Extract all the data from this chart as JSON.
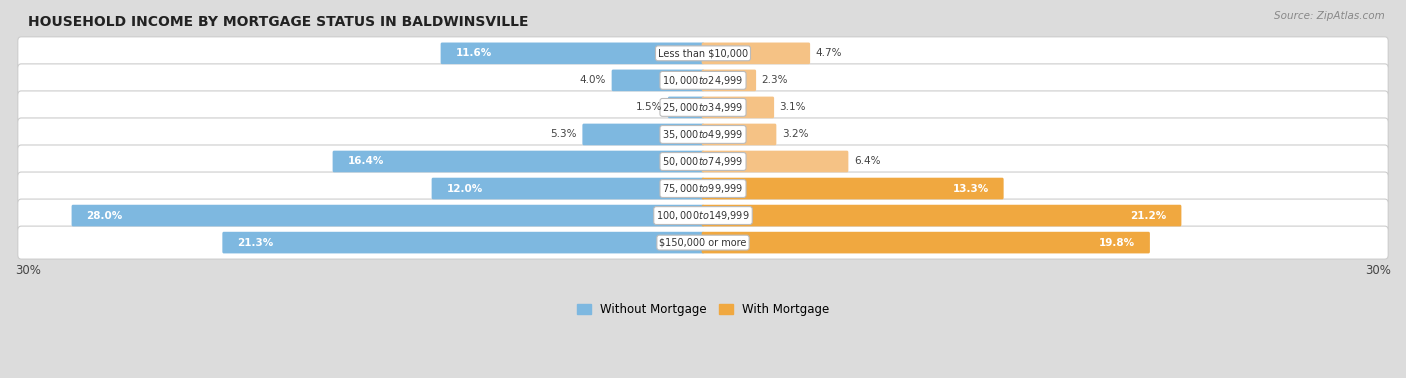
{
  "title": "HOUSEHOLD INCOME BY MORTGAGE STATUS IN BALDWINSVILLE",
  "source": "Source: ZipAtlas.com",
  "categories": [
    "Less than $10,000",
    "$10,000 to $24,999",
    "$25,000 to $34,999",
    "$35,000 to $49,999",
    "$50,000 to $74,999",
    "$75,000 to $99,999",
    "$100,000 to $149,999",
    "$150,000 or more"
  ],
  "without_mortgage": [
    11.6,
    4.0,
    1.5,
    5.3,
    16.4,
    12.0,
    28.0,
    21.3
  ],
  "with_mortgage": [
    4.7,
    2.3,
    3.1,
    3.2,
    6.4,
    13.3,
    21.2,
    19.8
  ],
  "color_without": "#7eb8e0",
  "color_with": "#f5c285",
  "color_with_large": "#f0a840",
  "bg_row": "#e8e8e8",
  "bg_figure": "#d8d8d8",
  "xlim": 30.0,
  "legend_labels": [
    "Without Mortgage",
    "With Mortgage"
  ],
  "label_inside_threshold": 8.0
}
